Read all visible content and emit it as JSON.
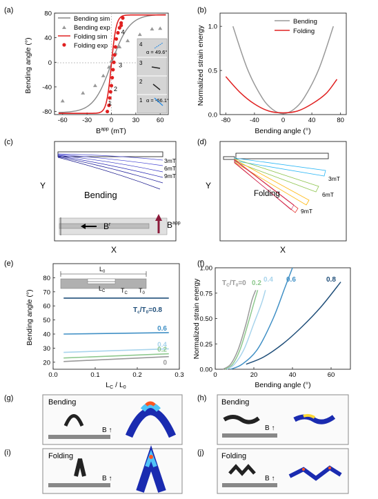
{
  "panels": {
    "a": "(a)",
    "b": "(b)",
    "c": "(c)",
    "d": "(d)",
    "e": "(e)",
    "f": "(f)",
    "g": "(g)",
    "h": "(h)",
    "i": "(i)",
    "j": "(j)"
  },
  "chart_data": [
    {
      "panel": "a",
      "type": "line",
      "xlabel_main": "B",
      "xlabel_sup": "app",
      "xlabel_unit": " (mT)",
      "ylabel": "Bending angle (°)",
      "xlim": [
        -70,
        70
      ],
      "ylim": [
        -85,
        80
      ],
      "xticks": [
        -60,
        -30,
        0,
        30,
        60
      ],
      "yticks": [
        -80,
        -40,
        0,
        40,
        80
      ],
      "legend": [
        {
          "name": "Bending sim",
          "color": "#888888",
          "kind": "line"
        },
        {
          "name": "Bending exp",
          "color": "#999999",
          "kind": "triangle"
        },
        {
          "name": "Folding sim",
          "color": "#e02020",
          "kind": "line"
        },
        {
          "name": "Folding exp",
          "color": "#e02020",
          "kind": "circle"
        }
      ],
      "bending_exp": [
        [
          -60,
          -63
        ],
        [
          -35,
          -50
        ],
        [
          -20,
          -38
        ],
        [
          -10,
          -22
        ],
        [
          -3,
          -8
        ],
        [
          0,
          2
        ],
        [
          5,
          15
        ],
        [
          10,
          25
        ],
        [
          20,
          35
        ],
        [
          35,
          45
        ],
        [
          50,
          54
        ],
        [
          60,
          55
        ]
      ],
      "folding_exp": [
        [
          -5,
          -80
        ],
        [
          -3,
          -70
        ],
        [
          -2,
          -58
        ],
        [
          -1,
          -48
        ],
        [
          0,
          -38
        ],
        [
          1,
          -25
        ],
        [
          2,
          -12
        ],
        [
          3,
          0
        ],
        [
          4,
          12
        ],
        [
          5,
          25
        ],
        [
          6,
          38
        ],
        [
          8,
          48
        ],
        [
          10,
          56
        ],
        [
          12,
          64
        ],
        [
          14,
          72
        ],
        [
          12,
          60
        ]
      ],
      "point_labels": [
        {
          "text": "1",
          "x": -4,
          "y": -70
        },
        {
          "text": "2",
          "x": 3,
          "y": -47
        },
        {
          "text": "3",
          "x": 9,
          "y": -8
        },
        {
          "text": "4",
          "x": 12,
          "y": 46
        }
      ],
      "inset": {
        "labels": [
          "4",
          "3",
          "2",
          "1"
        ],
        "angle_top": "α = 49.6°",
        "angle_bottom": "α = -66.1°"
      }
    },
    {
      "panel": "b",
      "type": "line",
      "xlabel": "Bending angle (°)",
      "ylabel": "Normalized strain energy",
      "xlim": [
        -88,
        88
      ],
      "ylim": [
        0,
        1.15
      ],
      "xticks": [
        -80,
        -40,
        0,
        40,
        80
      ],
      "yticks": [
        0,
        0.5,
        1.0
      ],
      "ytick_labels": [
        "0.0",
        "0.5",
        "1.0"
      ],
      "series": [
        {
          "name": "Bending",
          "color": "#999999",
          "points": [
            [
              -70,
              1.0
            ],
            [
              -50,
              0.52
            ],
            [
              -30,
              0.2
            ],
            [
              -15,
              0.06
            ],
            [
              0,
              0.01
            ],
            [
              15,
              0.06
            ],
            [
              30,
              0.2
            ],
            [
              50,
              0.52
            ],
            [
              70,
              1.0
            ]
          ]
        },
        {
          "name": "Folding",
          "color": "#e02020",
          "points": [
            [
              -80,
              0.43
            ],
            [
              -60,
              0.25
            ],
            [
              -40,
              0.12
            ],
            [
              -20,
              0.04
            ],
            [
              0,
              0.02
            ],
            [
              20,
              0.04
            ],
            [
              40,
              0.12
            ],
            [
              60,
              0.24
            ],
            [
              75,
              0.4
            ]
          ]
        }
      ]
    },
    {
      "panel": "e",
      "type": "line",
      "xlabel_main": "L",
      "xlabel_sub1": "C",
      "xlabel_mid": " / L",
      "xlabel_sub2": "0",
      "ylabel": "Bending angle (°)",
      "xlim": [
        0,
        0.3
      ],
      "ylim": [
        15,
        90
      ],
      "xticks": [
        0,
        0.1,
        0.2,
        0.3
      ],
      "xtick_labels": [
        "0.0",
        "0.1",
        "0.2",
        "0.3"
      ],
      "yticks": [
        20,
        30,
        40,
        50,
        60,
        70,
        80
      ],
      "series": [
        {
          "name": "0",
          "color": "#999999",
          "values": [
            [
              0.025,
              20.5
            ],
            [
              0.275,
              24
            ]
          ]
        },
        {
          "name": "0.2",
          "color": "#8dc88d",
          "values": [
            [
              0.025,
              23
            ],
            [
              0.275,
              26
            ]
          ]
        },
        {
          "name": "0.4",
          "color": "#a8d4ec",
          "values": [
            [
              0.025,
              27
            ],
            [
              0.275,
              29.5
            ]
          ]
        },
        {
          "name": "0.6",
          "color": "#3f8fc5",
          "values": [
            [
              0.025,
              40
            ],
            [
              0.275,
              41
            ]
          ]
        },
        {
          "name": "0.8",
          "color": "#1f4e79",
          "values": [
            [
              0.025,
              65.5
            ],
            [
              0.275,
              65.5
            ]
          ]
        }
      ],
      "label_08": "=0.8",
      "inset_labels": {
        "l0": "L",
        "lc": "L",
        "tc": "T",
        "t0": "T"
      }
    },
    {
      "panel": "f",
      "type": "line",
      "xlabel": "Bending angle (°)",
      "ylabel": "Normalized strain energy",
      "xlim": [
        0,
        70
      ],
      "ylim": [
        0,
        1.0
      ],
      "xticks": [
        0,
        20,
        40,
        60
      ],
      "yticks": [
        0,
        0.25,
        0.5,
        0.75,
        1.0
      ],
      "ytick_labels": [
        "0.00",
        "0.25",
        "0.50",
        "0.75",
        "1.00"
      ],
      "legend_prefix": "=0",
      "series": [
        {
          "name": "0",
          "color": "#999999",
          "points": [
            [
              4,
              0
            ],
            [
              8,
              0.05
            ],
            [
              12,
              0.2
            ],
            [
              16,
              0.45
            ],
            [
              19,
              0.68
            ],
            [
              21,
              0.78
            ]
          ]
        },
        {
          "name": "0.2",
          "color": "#8dc88d",
          "points": [
            [
              5,
              0
            ],
            [
              9,
              0.05
            ],
            [
              13,
              0.2
            ],
            [
              17,
              0.45
            ],
            [
              20,
              0.65
            ],
            [
              22,
              0.78
            ]
          ]
        },
        {
          "name": "0.4",
          "color": "#a8d4ec",
          "points": [
            [
              6,
              0
            ],
            [
              10,
              0.05
            ],
            [
              15,
              0.2
            ],
            [
              20,
              0.45
            ],
            [
              24,
              0.65
            ],
            [
              26,
              0.78
            ]
          ]
        },
        {
          "name": "0.6",
          "color": "#3f8fc5",
          "points": [
            [
              8,
              0
            ],
            [
              14,
              0.05
            ],
            [
              22,
              0.2
            ],
            [
              30,
              0.5
            ],
            [
              36,
              0.8
            ],
            [
              40,
              1.0
            ]
          ]
        },
        {
          "name": "0.8",
          "color": "#1f4e79",
          "points": [
            [
              16,
              0.05
            ],
            [
              25,
              0.12
            ],
            [
              35,
              0.25
            ],
            [
              45,
              0.42
            ],
            [
              55,
              0.62
            ],
            [
              65,
              0.86
            ]
          ]
        }
      ]
    }
  ],
  "panel_c": {
    "title": "Bending",
    "y": "Y",
    "x": "X",
    "field_labels": [
      "3mT",
      "6mT",
      "9mT"
    ],
    "br_main": "B",
    "br_sup": "r",
    "bapp_main": "B",
    "bapp_sup": "app"
  },
  "panel_d": {
    "title": "Folding",
    "y": "Y",
    "x": "X",
    "field_labels": [
      "3mT",
      "6mT",
      "9mT"
    ]
  },
  "photos": {
    "g_title": "Bending",
    "h_title": "Bending",
    "i_title": "Folding",
    "j_title": "Folding",
    "b_label": "B",
    "arrow": "↑"
  }
}
